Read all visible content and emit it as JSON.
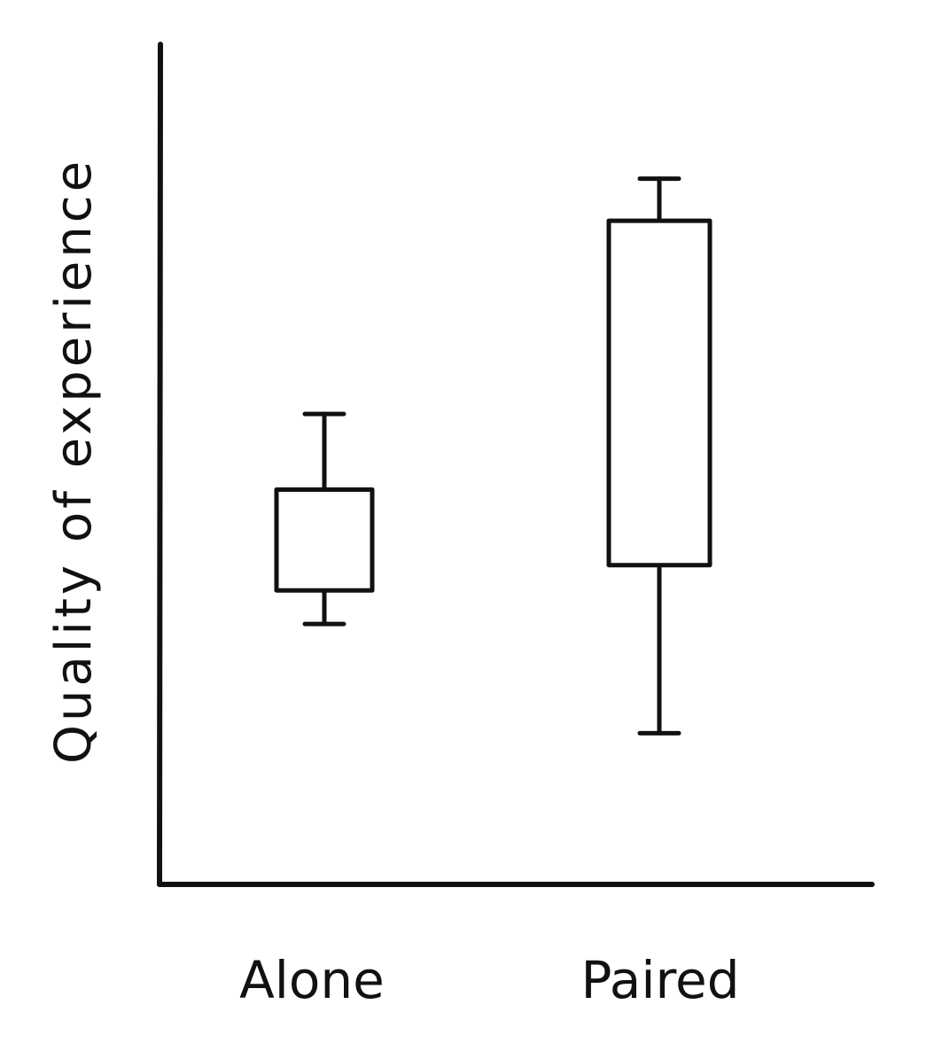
{
  "chart_data": {
    "type": "box",
    "title": "",
    "xlabel": "",
    "ylabel": "Quality of experience",
    "categories": [
      "Alone",
      "Paired"
    ],
    "boxes": [
      {
        "category": "Alone",
        "whisker_low": 3.1,
        "q1": 3.5,
        "q3": 4.7,
        "whisker_high": 5.6
      },
      {
        "category": "Paired",
        "whisker_low": 1.8,
        "q1": 3.8,
        "q3": 7.9,
        "whisker_high": 8.4
      }
    ],
    "ylim": [
      0,
      10
    ],
    "grid": false,
    "legend": "none"
  }
}
